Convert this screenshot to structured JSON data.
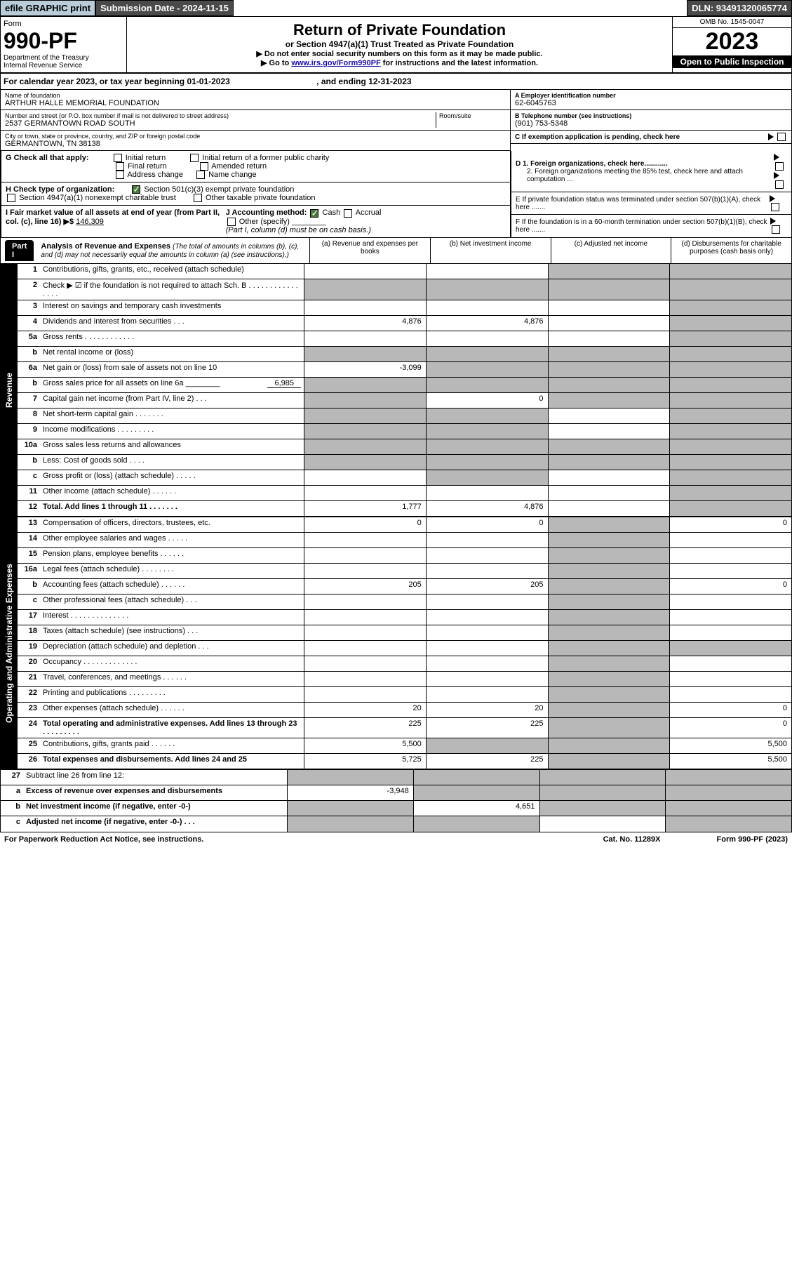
{
  "top": {
    "efile": "efile GRAPHIC print",
    "subdate": "Submission Date - 2024-11-15",
    "dln": "DLN: 93491320065774"
  },
  "header": {
    "form": "Form",
    "form_num": "990-PF",
    "dept": "Department of the Treasury",
    "irs": "Internal Revenue Service",
    "title": "Return of Private Foundation",
    "subtitle": "or Section 4947(a)(1) Trust Treated as Private Foundation",
    "instr1": "▶ Do not enter social security numbers on this form as it may be made public.",
    "instr2_pre": "▶ Go to ",
    "instr2_link": "www.irs.gov/Form990PF",
    "instr2_post": " for instructions and the latest information.",
    "omb": "OMB No. 1545-0047",
    "year": "2023",
    "open": "Open to Public Inspection"
  },
  "calyear": {
    "text": "For calendar year 2023, or tax year beginning 01-01-2023",
    "ending": ", and ending 12-31-2023"
  },
  "foundation": {
    "name_lbl": "Name of foundation",
    "name": "ARTHUR HALLE MEMORIAL FOUNDATION",
    "street_lbl": "Number and street (or P.O. box number if mail is not delivered to street address)",
    "street": "2537 GERMANTOWN ROAD SOUTH",
    "room_lbl": "Room/suite",
    "city_lbl": "City or town, state or province, country, and ZIP or foreign postal code",
    "city": "GERMANTOWN, TN  38138",
    "ein_lbl": "A Employer identification number",
    "ein": "62-6045763",
    "phone_lbl": "B Telephone number (see instructions)",
    "phone": "(901) 753-5348",
    "c_lbl": "C If exemption application is pending, check here"
  },
  "checks": {
    "g_lbl": "G Check all that apply:",
    "initial": "Initial return",
    "initial_former": "Initial return of a former public charity",
    "final": "Final return",
    "amended": "Amended return",
    "address": "Address change",
    "name_change": "Name change",
    "h_lbl": "H Check type of organization:",
    "h1": "Section 501(c)(3) exempt private foundation",
    "h2": "Section 4947(a)(1) nonexempt charitable trust",
    "h3": "Other taxable private foundation",
    "i_lbl": "I Fair market value of all assets at end of year (from Part II, col. (c), line 16) ▶$ ",
    "i_val": "146,309",
    "j_lbl": "J Accounting method:",
    "j_cash": "Cash",
    "j_accrual": "Accrual",
    "j_other": "Other (specify)",
    "j_note": "(Part I, column (d) must be on cash basis.)",
    "d1": "D 1. Foreign organizations, check here............",
    "d2": "2. Foreign organizations meeting the 85% test, check here and attach computation ...",
    "e_lbl": "E  If private foundation status was terminated under section 507(b)(1)(A), check here .......",
    "f_lbl": "F  If the foundation is in a 60-month termination under section 507(b)(1)(B), check here ......."
  },
  "part1": {
    "label": "Part I",
    "title": "Analysis of Revenue and Expenses",
    "title_note": "(The total of amounts in columns (b), (c), and (d) may not necessarily equal the amounts in column (a) (see instructions).)",
    "col_a": "(a)   Revenue and expenses per books",
    "col_b": "(b)   Net investment income",
    "col_c": "(c)   Adjusted net income",
    "col_d": "(d)   Disbursements for charitable purposes (cash basis only)"
  },
  "sections": {
    "revenue": "Revenue",
    "expenses": "Operating and Administrative Expenses"
  },
  "lines": [
    {
      "n": "1",
      "d": "Contributions, gifts, grants, etc., received (attach schedule)",
      "a": "",
      "b": "",
      "shade": [
        false,
        false,
        true,
        true
      ]
    },
    {
      "n": "2",
      "d": "Check ▶ ☑ if the foundation is not required to attach Sch. B  .  .  .  .  .  .  .  .  .  .  .  .  .  .  .  .",
      "shade": [
        true,
        true,
        true,
        true
      ]
    },
    {
      "n": "3",
      "d": "Interest on savings and temporary cash investments",
      "shade": [
        false,
        false,
        false,
        true
      ]
    },
    {
      "n": "4",
      "d": "Dividends and interest from securities  .  .  .",
      "a": "4,876",
      "b": "4,876",
      "shade": [
        false,
        false,
        false,
        true
      ]
    },
    {
      "n": "5a",
      "d": "Gross rents  .  .  .  .  .  .  .  .  .  .  .  .",
      "shade": [
        false,
        false,
        false,
        true
      ]
    },
    {
      "n": "b",
      "d": "Net rental income or (loss) ",
      "shade": [
        true,
        true,
        true,
        true
      ]
    },
    {
      "n": "6a",
      "d": "Net gain or (loss) from sale of assets not on line 10",
      "a": "-3,099",
      "shade": [
        false,
        true,
        true,
        true
      ]
    },
    {
      "n": "b",
      "d": "Gross sales price for all assets on line 6a ________",
      "sub": "6,985",
      "shade": [
        true,
        true,
        true,
        true
      ]
    },
    {
      "n": "7",
      "d": "Capital gain net income (from Part IV, line 2)  .  .  .",
      "b": "0",
      "shade": [
        true,
        false,
        true,
        true
      ]
    },
    {
      "n": "8",
      "d": "Net short-term capital gain  .  .  .  .  .  .  .",
      "shade": [
        true,
        true,
        false,
        true
      ]
    },
    {
      "n": "9",
      "d": "Income modifications  .  .  .  .  .  .  .  .  .",
      "shade": [
        true,
        true,
        false,
        true
      ]
    },
    {
      "n": "10a",
      "d": "Gross sales less returns and allowances",
      "shade": [
        true,
        true,
        true,
        true
      ]
    },
    {
      "n": "b",
      "d": "Less: Cost of goods sold  .  .  .  .",
      "shade": [
        true,
        true,
        true,
        true
      ]
    },
    {
      "n": "c",
      "d": "Gross profit or (loss) (attach schedule)  .  .  .  .  .",
      "shade": [
        false,
        true,
        false,
        true
      ]
    },
    {
      "n": "11",
      "d": "Other income (attach schedule)  .  .  .  .  .  .",
      "shade": [
        false,
        false,
        false,
        true
      ]
    },
    {
      "n": "12",
      "d": "Total. Add lines 1 through 11  .  .  .  .  .  .  .",
      "a": "1,777",
      "b": "4,876",
      "bold": true,
      "shade": [
        false,
        false,
        false,
        true
      ]
    }
  ],
  "exp_lines": [
    {
      "n": "13",
      "d": "Compensation of officers, directors, trustees, etc.",
      "a": "0",
      "b": "0",
      "dd": "0",
      "shade": [
        false,
        false,
        true,
        false
      ]
    },
    {
      "n": "14",
      "d": "Other employee salaries and wages  .  .  .  .  .",
      "shade": [
        false,
        false,
        true,
        false
      ]
    },
    {
      "n": "15",
      "d": "Pension plans, employee benefits  .  .  .  .  .  .",
      "shade": [
        false,
        false,
        true,
        false
      ]
    },
    {
      "n": "16a",
      "d": "Legal fees (attach schedule)  .  .  .  .  .  .  .  .",
      "shade": [
        false,
        false,
        true,
        false
      ]
    },
    {
      "n": "b",
      "d": "Accounting fees (attach schedule)  .  .  .  .  .  .",
      "a": "205",
      "b": "205",
      "dd": "0",
      "shade": [
        false,
        false,
        true,
        false
      ]
    },
    {
      "n": "c",
      "d": "Other professional fees (attach schedule)  .  .  .",
      "shade": [
        false,
        false,
        true,
        false
      ]
    },
    {
      "n": "17",
      "d": "Interest  .  .  .  .  .  .  .  .  .  .  .  .  .  .",
      "shade": [
        false,
        false,
        true,
        false
      ]
    },
    {
      "n": "18",
      "d": "Taxes (attach schedule) (see instructions)  .  .  .",
      "shade": [
        false,
        false,
        true,
        false
      ]
    },
    {
      "n": "19",
      "d": "Depreciation (attach schedule) and depletion  .  .  .",
      "shade": [
        false,
        false,
        true,
        true
      ]
    },
    {
      "n": "20",
      "d": "Occupancy  .  .  .  .  .  .  .  .  .  .  .  .  .",
      "shade": [
        false,
        false,
        true,
        false
      ]
    },
    {
      "n": "21",
      "d": "Travel, conferences, and meetings  .  .  .  .  .  .",
      "shade": [
        false,
        false,
        true,
        false
      ]
    },
    {
      "n": "22",
      "d": "Printing and publications  .  .  .  .  .  .  .  .  .",
      "shade": [
        false,
        false,
        true,
        false
      ]
    },
    {
      "n": "23",
      "d": "Other expenses (attach schedule)  .  .  .  .  .  .",
      "a": "20",
      "b": "20",
      "dd": "0",
      "shade": [
        false,
        false,
        true,
        false
      ]
    },
    {
      "n": "24",
      "d": "Total operating and administrative expenses. Add lines 13 through 23  .  .  .  .  .  .  .  .  .",
      "a": "225",
      "b": "225",
      "dd": "0",
      "bold": true,
      "shade": [
        false,
        false,
        true,
        false
      ]
    },
    {
      "n": "25",
      "d": "Contributions, gifts, grants paid  .  .  .  .  .  .",
      "a": "5,500",
      "dd": "5,500",
      "shade": [
        false,
        true,
        true,
        false
      ]
    },
    {
      "n": "26",
      "d": "Total expenses and disbursements. Add lines 24 and 25",
      "a": "5,725",
      "b": "225",
      "dd": "5,500",
      "bold": true,
      "shade": [
        false,
        false,
        true,
        false
      ]
    }
  ],
  "line27": {
    "n": "27",
    "d": "Subtract line 26 from line 12:",
    "a_n": "a",
    "a_d": "Excess of revenue over expenses and disbursements",
    "a_v": "-3,948",
    "b_n": "b",
    "b_d": "Net investment income (if negative, enter -0-)",
    "b_v": "4,651",
    "c_n": "c",
    "c_d": "Adjusted net income (if negative, enter -0-)  .  .  ."
  },
  "footer": {
    "left": "For Paperwork Reduction Act Notice, see instructions.",
    "mid": "Cat. No. 11289X",
    "right": "Form 990-PF (2023)"
  }
}
